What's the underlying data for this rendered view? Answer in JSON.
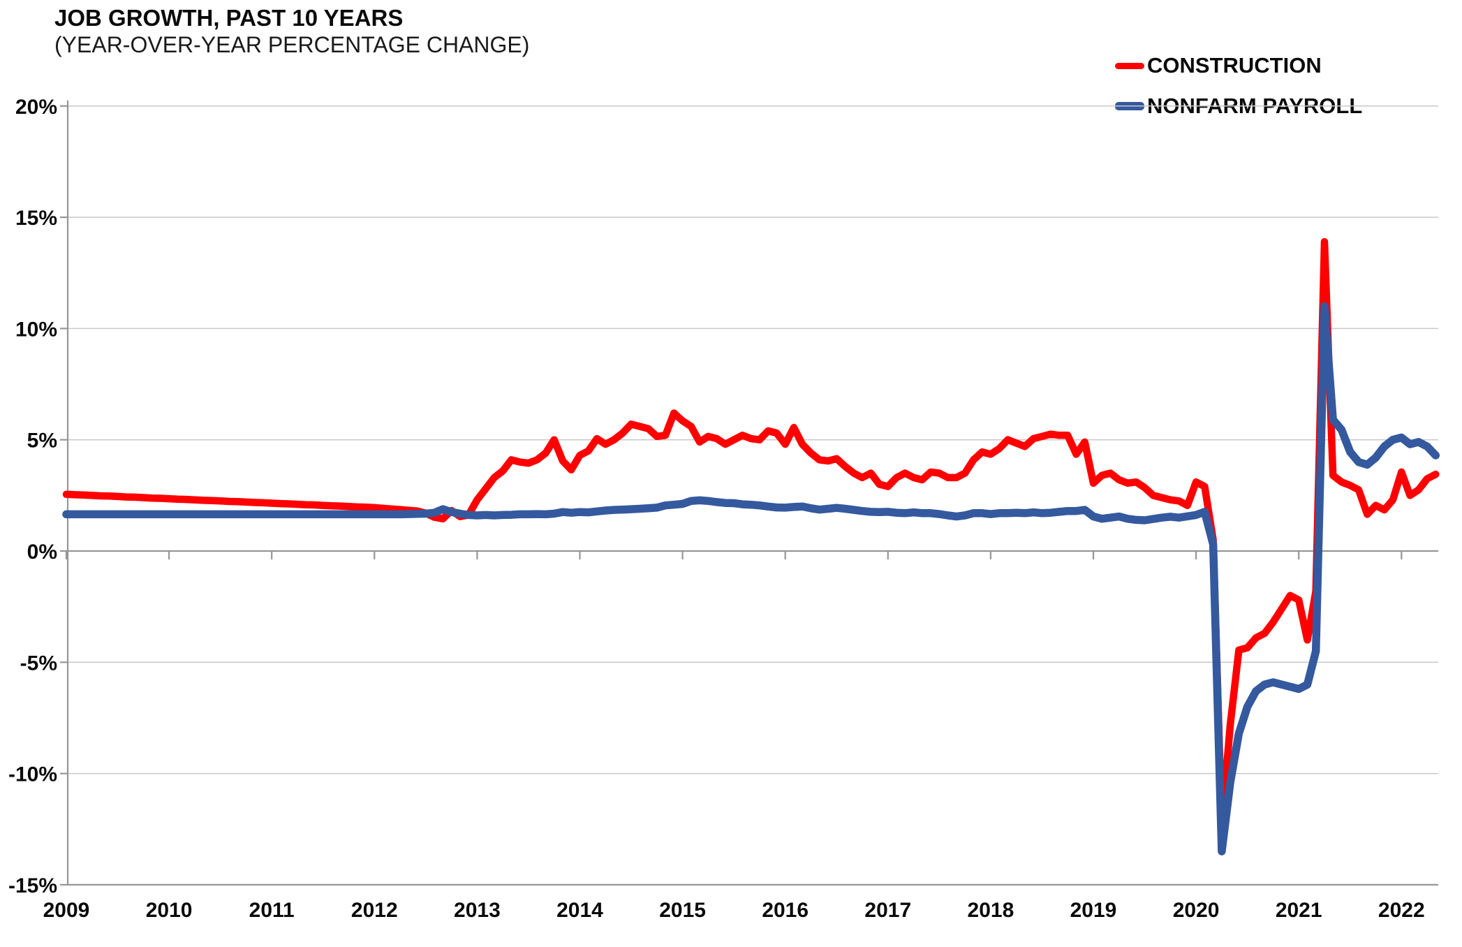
{
  "title": "JOB GROWTH, PAST 10 YEARS",
  "subtitle": "(YEAR-OVER-YEAR PERCENTAGE CHANGE)",
  "legend": {
    "items": [
      {
        "label": "CONSTRUCTION",
        "color": "#fe0000"
      },
      {
        "label": "NONFARM PAYROLL",
        "color": "#35599e"
      }
    ]
  },
  "colors": {
    "gridline": "#c8c8c8",
    "axis": "#969696",
    "tick_text": "#0a0a0a"
  },
  "chart_data": {
    "type": "line",
    "title": "JOB GROWTH, PAST 10 YEARS",
    "subtitle": "(YEAR-OVER-YEAR PERCENTAGE CHANGE)",
    "xlabel": "",
    "ylabel": "",
    "x_start_year": 2009,
    "points_per_year": 12,
    "x_ticks": [
      2009,
      2010,
      2011,
      2012,
      2013,
      2014,
      2015,
      2016,
      2017,
      2018,
      2019,
      2020,
      2021,
      2022
    ],
    "y_ticks": [
      {
        "v": 20,
        "label": "20%"
      },
      {
        "v": 15,
        "label": "15%"
      },
      {
        "v": 10,
        "label": "10%"
      },
      {
        "v": 5,
        "label": "5%"
      },
      {
        "v": 0,
        "label": "0%"
      },
      {
        "v": -5,
        "label": "-5%"
      },
      {
        "v": -10,
        "label": "-10%"
      },
      {
        "v": -15,
        "label": "-15%"
      }
    ],
    "ylim": [
      -15,
      20
    ],
    "grid": "horizontal-only",
    "legend_position": "top-right",
    "series": [
      {
        "name": "CONSTRUCTION",
        "id": "construction-line",
        "color": "#fe0000",
        "stroke_width": 10.5,
        "values_by_year": [
          [
            2.55,
            2.53,
            2.52,
            2.5,
            2.48,
            2.47,
            2.45,
            2.43,
            2.42,
            2.4,
            2.38,
            2.37
          ],
          [
            2.35,
            2.33,
            2.32,
            2.3,
            2.28,
            2.27,
            2.25,
            2.23,
            2.22,
            2.2,
            2.18,
            2.17
          ],
          [
            2.15,
            2.13,
            2.12,
            2.1,
            2.08,
            2.07,
            2.05,
            2.03,
            2.02,
            2.0,
            1.98,
            1.97
          ],
          [
            1.95,
            1.92,
            1.89,
            1.86,
            1.83,
            1.8,
            1.7,
            1.52,
            1.45,
            1.82,
            1.55,
            1.62
          ],
          [
            2.3,
            2.8,
            3.3,
            3.6,
            4.1,
            4.0,
            3.95,
            4.1,
            4.4,
            5.0,
            4.05,
            3.65
          ],
          [
            4.3,
            4.5,
            5.05,
            4.8,
            5.0,
            5.3,
            5.7,
            5.6,
            5.5,
            5.15,
            5.2,
            6.2
          ],
          [
            5.85,
            5.6,
            4.9,
            5.15,
            5.05,
            4.8,
            5.0,
            5.2,
            5.05,
            5.0,
            5.4,
            5.3
          ],
          [
            4.8,
            5.55,
            4.8,
            4.4,
            4.1,
            4.05,
            4.15,
            3.8,
            3.5,
            3.3,
            3.5,
            3.0
          ],
          [
            2.9,
            3.3,
            3.5,
            3.3,
            3.2,
            3.55,
            3.5,
            3.3,
            3.3,
            3.5,
            4.1,
            4.45
          ],
          [
            4.35,
            4.6,
            5.0,
            4.85,
            4.7,
            5.05,
            5.15,
            5.25,
            5.2,
            5.2,
            4.35,
            4.9
          ],
          [
            3.05,
            3.4,
            3.5,
            3.2,
            3.05,
            3.1,
            2.85,
            2.5,
            2.4,
            2.3,
            2.25,
            2.05
          ],
          [
            3.1,
            2.9,
            0.5,
            -12.3,
            -7.8,
            -4.45,
            -4.35,
            -3.9,
            -3.7,
            -3.2,
            -2.6,
            -2.0
          ],
          [
            -2.2,
            -4.0,
            -1.8,
            13.9,
            3.4,
            3.1,
            2.95,
            2.75,
            1.65,
            2.05,
            1.85,
            2.3
          ],
          [
            3.55,
            2.5,
            2.75,
            3.25,
            3.45
          ]
        ]
      },
      {
        "name": "NONFARM PAYROLL",
        "id": "nonfarm-payroll-line",
        "color": "#35599e",
        "stroke_width": 11.5,
        "values_by_year": [
          [
            1.65,
            1.65,
            1.65,
            1.65,
            1.65,
            1.65,
            1.65,
            1.65,
            1.65,
            1.65,
            1.65,
            1.65
          ],
          [
            1.65,
            1.65,
            1.65,
            1.65,
            1.65,
            1.65,
            1.65,
            1.65,
            1.65,
            1.65,
            1.65,
            1.65
          ],
          [
            1.65,
            1.65,
            1.65,
            1.65,
            1.65,
            1.65,
            1.65,
            1.65,
            1.65,
            1.65,
            1.65,
            1.65
          ],
          [
            1.65,
            1.65,
            1.65,
            1.65,
            1.66,
            1.67,
            1.68,
            1.72,
            1.88,
            1.75,
            1.68,
            1.62
          ],
          [
            1.6,
            1.62,
            1.6,
            1.62,
            1.63,
            1.65,
            1.65,
            1.66,
            1.65,
            1.68,
            1.75,
            1.72
          ],
          [
            1.75,
            1.74,
            1.78,
            1.82,
            1.85,
            1.86,
            1.88,
            1.9,
            1.92,
            1.95,
            2.05,
            2.08
          ],
          [
            2.12,
            2.25,
            2.28,
            2.25,
            2.2,
            2.16,
            2.15,
            2.1,
            2.08,
            2.05,
            2.0,
            1.96
          ],
          [
            1.95,
            1.98,
            2.0,
            1.92,
            1.86,
            1.9,
            1.94,
            1.9,
            1.85,
            1.8,
            1.76,
            1.75
          ],
          [
            1.76,
            1.72,
            1.7,
            1.74,
            1.7,
            1.7,
            1.66,
            1.6,
            1.55,
            1.6,
            1.7,
            1.7
          ],
          [
            1.66,
            1.7,
            1.7,
            1.72,
            1.7,
            1.74,
            1.7,
            1.72,
            1.76,
            1.8,
            1.8,
            1.85
          ],
          [
            1.55,
            1.45,
            1.5,
            1.55,
            1.45,
            1.4,
            1.38,
            1.44,
            1.5,
            1.54,
            1.5,
            1.56
          ],
          [
            1.62,
            1.76,
            0.3,
            -13.5,
            -10.4,
            -8.2,
            -7.0,
            -6.3,
            -6.0,
            -5.9,
            -6.0,
            -6.1
          ],
          [
            -6.2,
            -6.0,
            -4.5,
            11.0,
            5.9,
            5.45,
            4.45,
            4.0,
            3.88,
            4.2,
            4.7,
            5.0
          ],
          [
            5.1,
            4.8,
            4.9,
            4.7,
            4.3
          ]
        ]
      }
    ]
  }
}
